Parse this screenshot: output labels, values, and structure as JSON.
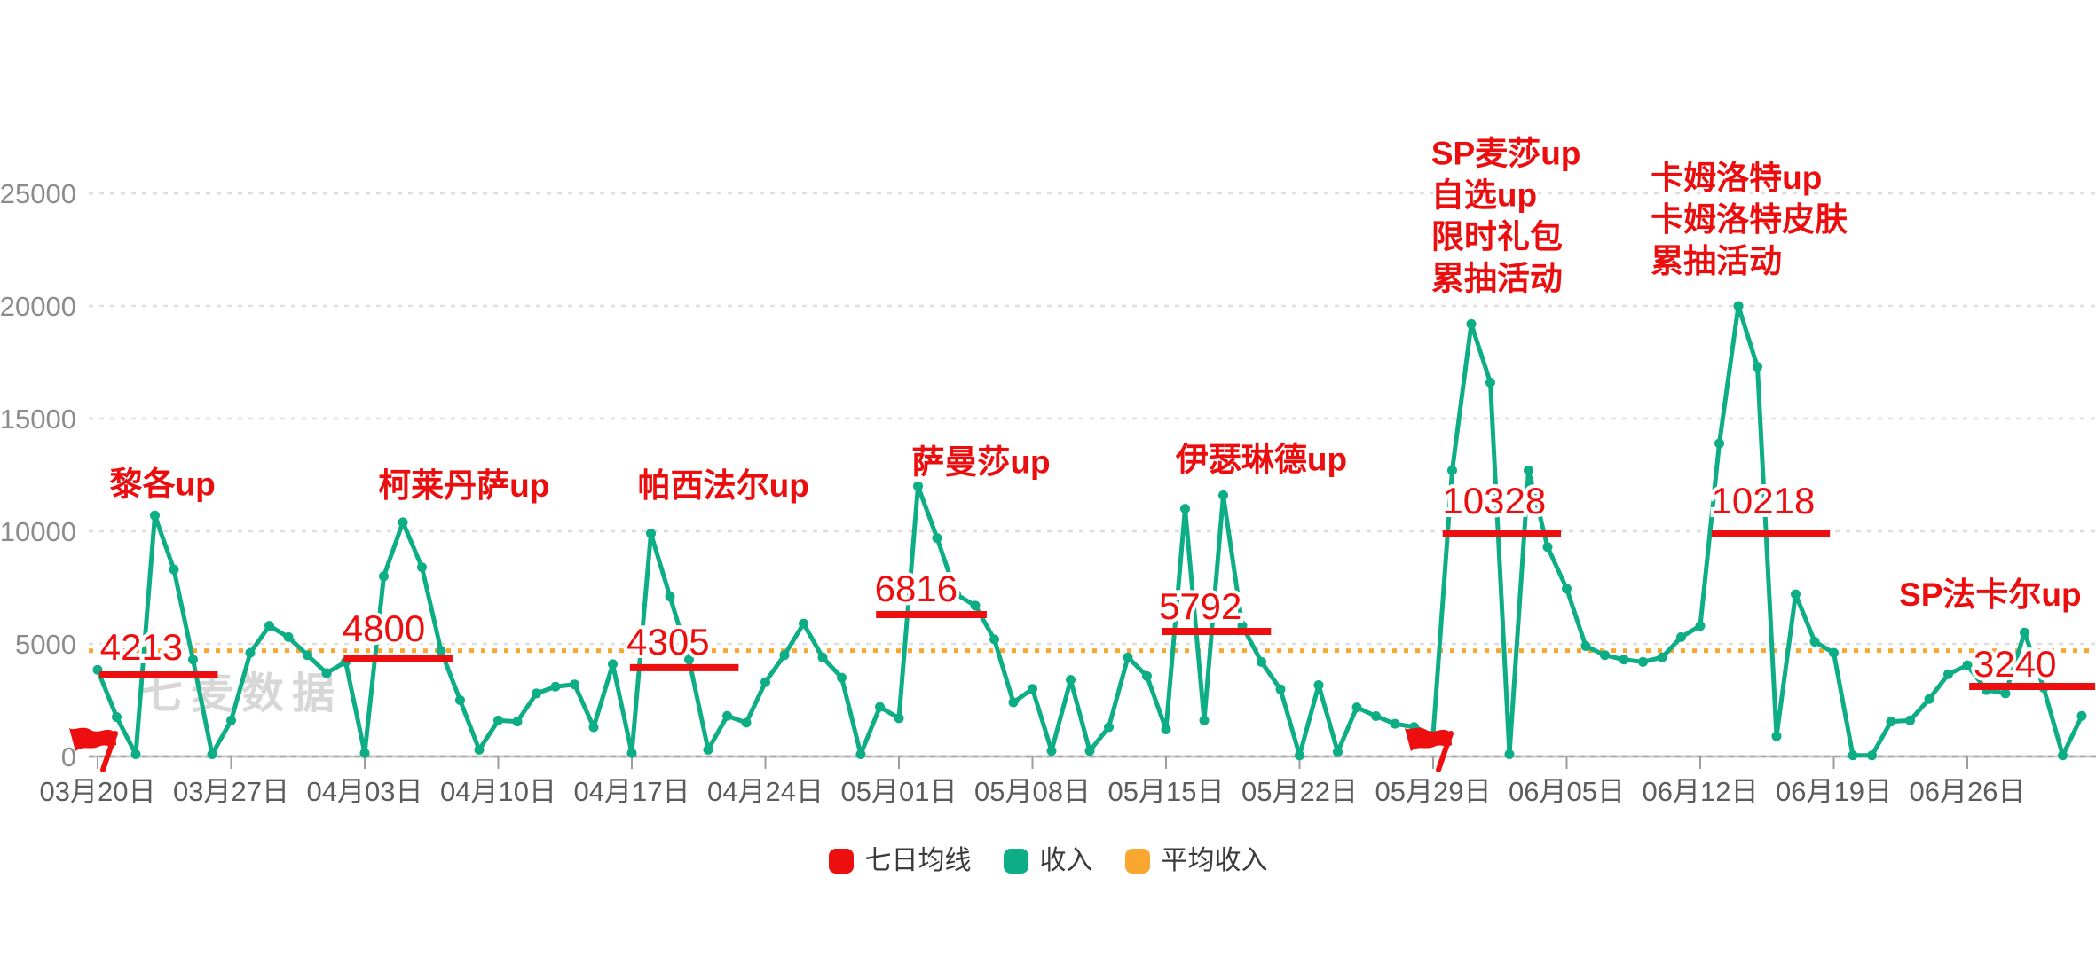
{
  "watermark": "七麦数据",
  "colors": {
    "series_green": "#0DAD85",
    "seven_day_red": "#ED0F0F",
    "avg_orange": "#FAA732",
    "annotation_red": "#EC0E0E",
    "grid_line": "#DEDEDE",
    "axis_line": "#C9C9C9",
    "x_label": "#5C5C5C",
    "y_label": "#8C8C8C",
    "watermark_gray": "#D7D7D7"
  },
  "legend": {
    "items": [
      {
        "label": "七日均线",
        "color": "#ED0F0F"
      },
      {
        "label": "收入",
        "color": "#0DAD85"
      },
      {
        "label": "平均收入",
        "color": "#FAA732"
      }
    ]
  },
  "chart_data": {
    "type": "line",
    "title": "",
    "xlabel": "",
    "ylabel": "",
    "grid": true,
    "legend_position": "bottom",
    "ylim": [
      0,
      25000
    ],
    "y_ticks": [
      0,
      5000,
      10000,
      15000,
      20000,
      25000
    ],
    "x_tick_labels": [
      "03月20日",
      "03月27日",
      "04月03日",
      "04月10日",
      "04月17日",
      "04月24日",
      "05月01日",
      "05月08日",
      "05月15日",
      "05月22日",
      "05月29日",
      "06月05日",
      "06月12日",
      "06月19日",
      "06月26日"
    ],
    "x_tick_days": [
      0,
      7,
      14,
      21,
      28,
      35,
      42,
      49,
      56,
      63,
      70,
      77,
      84,
      91,
      98
    ],
    "series": [
      {
        "name": "收入",
        "color": "#0DAD85",
        "start_date": "03月20日",
        "values": [
          3850,
          1750,
          100,
          10700,
          8300,
          4300,
          100,
          1600,
          4600,
          5800,
          5300,
          4500,
          3700,
          4200,
          150,
          8000,
          10400,
          8400,
          4700,
          2500,
          300,
          1600,
          1550,
          2800,
          3100,
          3200,
          1300,
          4100,
          150,
          9900,
          7100,
          4300,
          300,
          1800,
          1500,
          3300,
          4500,
          5900,
          4400,
          3500,
          100,
          2200,
          1700,
          12000,
          9700,
          7200,
          6700,
          5200,
          2400,
          3000,
          250,
          3400,
          250,
          1300,
          4400,
          3570,
          1200,
          11000,
          1600,
          11600,
          5800,
          4200,
          2980,
          50,
          3170,
          200,
          2180,
          1790,
          1450,
          1310,
          950,
          12700,
          19200,
          16600,
          100,
          12700,
          9300,
          7450,
          4900,
          4500,
          4300,
          4200,
          4400,
          5300,
          5800,
          13900,
          20000,
          17300,
          900,
          7200,
          5100,
          4600,
          50,
          50,
          1550,
          1600,
          2550,
          3650,
          4050,
          2950,
          2800,
          5500,
          3050,
          50,
          1800
        ]
      }
    ],
    "average_line": {
      "name": "平均收入",
      "value": 4700,
      "color": "#FAA732"
    },
    "seven_day_segments": [
      {
        "label": "4213",
        "value": 3620,
        "day_start": 0.1,
        "day_end": 6.3,
        "label_day": 2.3,
        "label_value": 4840
      },
      {
        "label": "4800",
        "value": 4330,
        "day_start": 12.9,
        "day_end": 18.6,
        "label_day": 15.0,
        "label_value": 5670
      },
      {
        "label": "4305",
        "value": 3940,
        "day_start": 27.9,
        "day_end": 33.6,
        "label_day": 29.9,
        "label_value": 5080
      },
      {
        "label": "6816",
        "value": 6300,
        "day_start": 40.8,
        "day_end": 46.6,
        "label_day": 42.9,
        "label_value": 7440
      },
      {
        "label": "5792",
        "value": 5550,
        "day_start": 55.8,
        "day_end": 61.5,
        "label_day": 57.8,
        "label_value": 6650
      },
      {
        "label": "10328",
        "value": 9880,
        "day_start": 70.5,
        "day_end": 76.7,
        "label_day": 73.2,
        "label_value": 11340
      },
      {
        "label": "10218",
        "value": 9880,
        "day_start": 84.6,
        "day_end": 90.8,
        "label_day": 87.3,
        "label_value": 11340
      },
      {
        "label": "3240",
        "value": 3110,
        "day_start": 98.1,
        "day_end": 104.7,
        "label_day": 100.5,
        "label_value": 4090
      }
    ],
    "annotations": [
      {
        "lines": [
          "黎各up"
        ],
        "day": 3.4,
        "value": 12100,
        "anchor": "middle"
      },
      {
        "lines": [
          "柯莱丹萨up"
        ],
        "day": 19.2,
        "value": 12050,
        "anchor": "middle"
      },
      {
        "lines": [
          "帕西法尔up"
        ],
        "day": 32.8,
        "value": 12050,
        "anchor": "middle"
      },
      {
        "lines": [
          "萨曼莎up"
        ],
        "day": 46.3,
        "value": 13100,
        "anchor": "middle"
      },
      {
        "lines": [
          "伊瑟琳德up"
        ],
        "day": 61.0,
        "value": 13200,
        "anchor": "middle"
      },
      {
        "lines": [
          "SP麦莎up",
          "自选up",
          "限时礼包",
          "累抽活动"
        ],
        "day": 69.9,
        "value": 26800,
        "anchor": "start"
      },
      {
        "lines": [
          "卡姆洛特up",
          "卡姆洛特皮肤",
          "累抽活动"
        ],
        "day": 81.4,
        "value": 25700,
        "anchor": "start"
      },
      {
        "lines": [
          "SP法卡尔up"
        ],
        "day": 99.2,
        "value": 7200,
        "anchor": "middle"
      }
    ],
    "flags": [
      {
        "day": 0
      },
      {
        "day": 70
      }
    ]
  }
}
